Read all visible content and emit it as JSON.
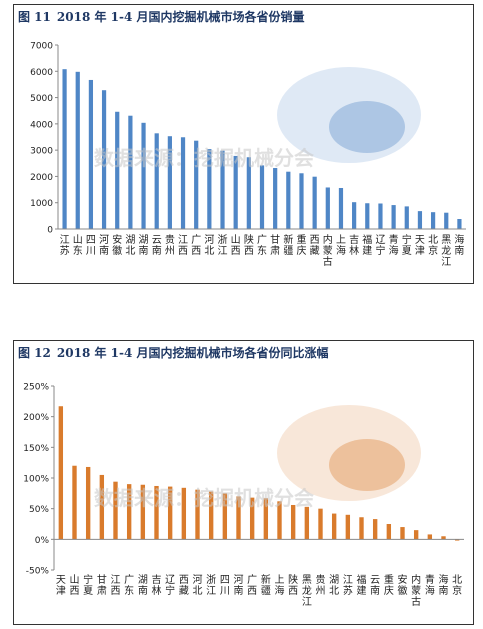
{
  "chart_data": [
    {
      "type": "bar",
      "figure_label": "图 11",
      "title": "2018 年 1-4 月国内挖掘机械市场各省份销量",
      "categories": [
        "江苏",
        "山东",
        "四川",
        "河南",
        "安徽",
        "湖北",
        "湖南",
        "云南",
        "贵州",
        "江西",
        "广西",
        "河北",
        "浙江",
        "山西",
        "陕西",
        "广东",
        "甘肃",
        "新疆",
        "重庆",
        "西藏",
        "内蒙古",
        "上海",
        "吉林",
        "福建",
        "辽宁",
        "青海",
        "宁夏",
        "天津",
        "北京",
        "黑龙江",
        "海南"
      ],
      "values": [
        6080,
        5980,
        5670,
        5280,
        4460,
        4310,
        4040,
        3640,
        3530,
        3490,
        3360,
        3040,
        2980,
        2780,
        2730,
        2420,
        2320,
        2180,
        2120,
        1990,
        1580,
        1560,
        1020,
        980,
        970,
        910,
        860,
        680,
        640,
        620,
        380
      ],
      "ylim": [
        0,
        7000
      ],
      "yticks": [
        "0",
        "1000",
        "2000",
        "3000",
        "4000",
        "5000",
        "6000",
        "7000"
      ],
      "bar_color": "#4f86c6",
      "watermark": "数据来源：挖掘机械分会"
    },
    {
      "type": "bar",
      "figure_label": "图 12",
      "title": "2018 年 1-4 月国内挖掘机械市场各省份同比涨幅",
      "categories": [
        "天津",
        "山西",
        "宁夏",
        "甘肃",
        "江西",
        "广东",
        "湖南",
        "吉林",
        "辽宁",
        "西藏",
        "河北",
        "浙江",
        "四川",
        "河南",
        "广西",
        "新疆",
        "上海",
        "陕西",
        "黑龙江",
        "贵州",
        "湖北",
        "江苏",
        "福建",
        "云南",
        "重庆",
        "安徽",
        "内蒙古",
        "青海",
        "海南",
        "北京"
      ],
      "values": [
        2.17,
        1.2,
        1.18,
        1.05,
        0.94,
        0.9,
        0.89,
        0.87,
        0.86,
        0.84,
        0.81,
        0.78,
        0.75,
        0.7,
        0.68,
        0.67,
        0.62,
        0.56,
        0.53,
        0.5,
        0.42,
        0.4,
        0.36,
        0.33,
        0.25,
        0.2,
        0.15,
        0.08,
        0.05,
        -0.02
      ],
      "ylim": [
        -0.5,
        2.5
      ],
      "yticks": [
        "-50%",
        "0%",
        "50%",
        "100%",
        "150%",
        "200%",
        "250%"
      ],
      "bar_color": "#d97b2c",
      "watermark": "数据来源：挖掘机械分会"
    }
  ]
}
